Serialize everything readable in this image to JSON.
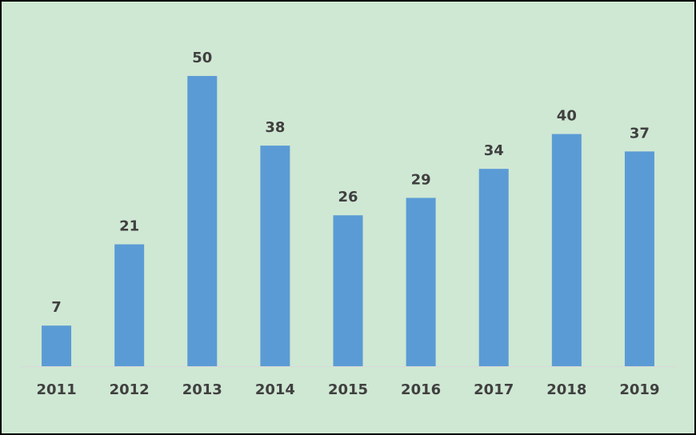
{
  "chart_data": {
    "type": "bar",
    "categories": [
      "2011",
      "2012",
      "2013",
      "2014",
      "2015",
      "2016",
      "2017",
      "2018",
      "2019"
    ],
    "values": [
      7,
      21,
      50,
      38,
      26,
      29,
      34,
      40,
      37
    ],
    "color": "#5b9bd5"
  }
}
